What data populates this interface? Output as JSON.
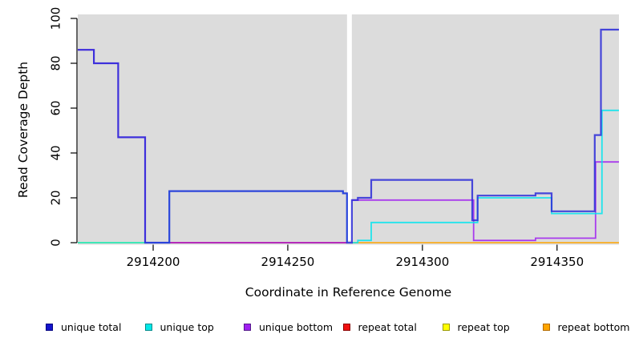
{
  "chart_data": {
    "type": "line",
    "subtype": "step-after",
    "title": "",
    "xlabel": "Coordinate in Reference Genome",
    "ylabel": "Read Coverage Depth",
    "xlim": [
      2914172,
      2914373
    ],
    "ylim": [
      0,
      100
    ],
    "x_ticks": [
      2914200,
      2914250,
      2914300,
      2914350
    ],
    "y_ticks": [
      0,
      20,
      40,
      60,
      80,
      100
    ],
    "grid": false,
    "plot_bg": "#DCDCDC",
    "coverage_gap_x": [
      2914272,
      2914273.8
    ],
    "legend_position": "bottom",
    "series": [
      {
        "name": "repeat bottom",
        "color": "#FFA500",
        "width": 1.8,
        "segments": [
          {
            "points": [
              [
                2914172,
                0
              ]
            ],
            "xend": 2914272
          },
          {
            "points": [
              [
                2914273.8,
                0
              ]
            ],
            "xend": 2914373
          }
        ]
      },
      {
        "name": "repeat top",
        "color": "#FFFF00",
        "width": 1.8,
        "segments": [
          {
            "points": [
              [
                2914172,
                0
              ]
            ],
            "xend": 2914272
          }
        ]
      },
      {
        "name": "repeat total",
        "color": "#EE1122",
        "width": 1.8,
        "segments": [
          {
            "points": [
              [
                2914206,
                0
              ]
            ],
            "xend": 2914272
          }
        ]
      },
      {
        "name": "unique bottom",
        "color": "#A020F0",
        "width": 1.8,
        "segments": [
          {
            "points": [
              [
                2914172,
                86
              ],
              [
                2914178,
                80
              ],
              [
                2914187,
                47
              ],
              [
                2914197,
                0
              ]
            ],
            "xend": 2914272
          },
          {
            "points": [
              [
                2914273.8,
                19
              ],
              [
                2914319,
                1
              ],
              [
                2914342,
                2
              ],
              [
                2914364.3,
                36
              ]
            ],
            "xend": 2914373
          }
        ]
      },
      {
        "name": "unique top",
        "color": "#00E5EE",
        "width": 1.8,
        "segments": [
          {
            "points": [
              [
                2914172,
                0
              ],
              [
                2914206,
                23
              ],
              [
                2914270.5,
                22
              ],
              [
                2914272,
                0
              ]
            ],
            "xend": 2914272
          },
          {
            "points": [
              [
                2914273.8,
                0
              ],
              [
                2914276,
                1
              ],
              [
                2914281,
                9
              ],
              [
                2914320.5,
                20
              ],
              [
                2914348,
                13
              ],
              [
                2914366.7,
                59
              ]
            ],
            "xend": 2914373
          }
        ]
      },
      {
        "name": "unique total",
        "color": "#2A2AD8",
        "width": 2.2,
        "segments": [
          {
            "points": [
              [
                2914172,
                86
              ],
              [
                2914178,
                80
              ],
              [
                2914187,
                47
              ],
              [
                2914197,
                0
              ],
              [
                2914206,
                23
              ],
              [
                2914270.5,
                22
              ],
              [
                2914272,
                0
              ],
              [
                2914273.8,
                19
              ],
              [
                2914276,
                20
              ],
              [
                2914281,
                28
              ],
              [
                2914318.5,
                10
              ],
              [
                2914320.5,
                21
              ],
              [
                2914342,
                22
              ],
              [
                2914348,
                14
              ],
              [
                2914364,
                48
              ],
              [
                2914366.3,
                95
              ]
            ],
            "xend": 2914373
          }
        ]
      }
    ]
  },
  "legend": {
    "items": [
      {
        "label": "unique total",
        "color": "#1414CC",
        "border": "#000080"
      },
      {
        "label": "unique top",
        "color": "#00E8E8",
        "border": "#008B8B"
      },
      {
        "label": "unique bottom",
        "color": "#A020F0",
        "border": "#551A8B"
      },
      {
        "label": "repeat total",
        "color": "#F01010",
        "border": "#8B0000"
      },
      {
        "label": "repeat top",
        "color": "#FFFF00",
        "border": "#9A9A00"
      },
      {
        "label": "repeat bottom",
        "color": "#FFA500",
        "border": "#B36B00"
      }
    ]
  }
}
